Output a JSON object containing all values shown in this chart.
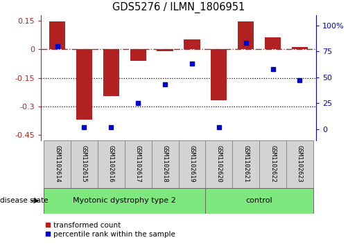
{
  "title": "GDS5276 / ILMN_1806951",
  "samples": [
    "GSM1102614",
    "GSM1102615",
    "GSM1102616",
    "GSM1102617",
    "GSM1102618",
    "GSM1102619",
    "GSM1102620",
    "GSM1102621",
    "GSM1102622",
    "GSM1102623"
  ],
  "red_values": [
    0.148,
    -0.37,
    -0.248,
    -0.062,
    -0.01,
    0.052,
    -0.268,
    0.148,
    0.062,
    0.012
  ],
  "blue_values": [
    80,
    2,
    2,
    25,
    43,
    63,
    2,
    83,
    58,
    47
  ],
  "ylim_left": [
    -0.48,
    0.18
  ],
  "ylim_right": [
    -10.9,
    110
  ],
  "yticks_left": [
    0.15,
    0,
    -0.15,
    -0.3,
    -0.45
  ],
  "yticks_right": [
    100,
    75,
    50,
    25,
    0
  ],
  "yticks_right_labels": [
    "100%",
    "75",
    "50",
    "25",
    "0"
  ],
  "hline_y": 0,
  "dotted_lines": [
    -0.15,
    -0.3
  ],
  "group1_label": "Myotonic dystrophy type 2",
  "group2_label": "control",
  "group1_count": 6,
  "group2_count": 4,
  "legend_red": "transformed count",
  "legend_blue": "percentile rank within the sample",
  "disease_state_label": "disease state",
  "bar_color": "#B22222",
  "blue_color": "#0000CC",
  "group_color": "#7EE87E",
  "sample_box_color": "#D3D3D3",
  "bar_width": 0.6,
  "figsize": [
    5.15,
    3.63
  ],
  "dpi": 100
}
